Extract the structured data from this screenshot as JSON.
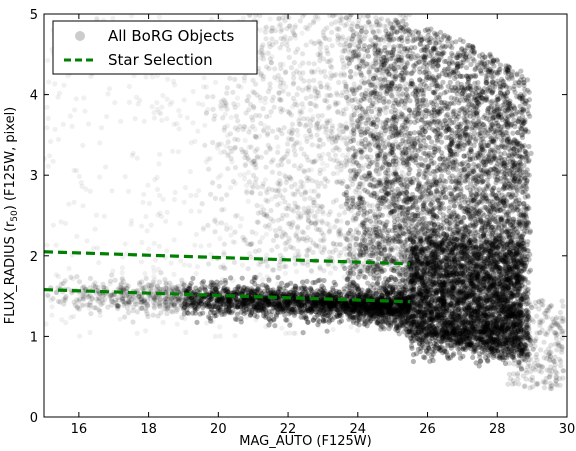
{
  "chart_data": {
    "type": "scatter",
    "title": "",
    "xlabel": "MAG_AUTO (F125W)",
    "ylabel": "FLUX_RADIUS (r",
    "ylabel_sub": "50",
    "ylabel_tail": ") (F125W, pixel)",
    "xlim": [
      15,
      30
    ],
    "ylim": [
      0,
      5
    ],
    "xticks": [
      "16",
      "18",
      "20",
      "22",
      "24",
      "26",
      "28",
      "30"
    ],
    "yticks": [
      "0",
      "1",
      "2",
      "3",
      "4",
      "5"
    ],
    "legend_position": "top-left",
    "series": [
      {
        "name": "All BoRG Objects",
        "kind": "scatter",
        "color": "#000000",
        "marker": "circle",
        "density_regions": [
          {
            "label": "faint dense cloud",
            "x_range": [
              23.5,
              29.0
            ],
            "y_range": [
              0.6,
              5.0
            ],
            "mean": [
              27.0,
              1.6
            ]
          },
          {
            "label": "stellar locus band",
            "x_range": [
              15.0,
              25.5
            ],
            "y_range": [
              1.3,
              1.8
            ],
            "mean": [
              21.5,
              1.5
            ]
          },
          {
            "label": "extended galaxy plume",
            "x_range": [
              19.0,
              26.0
            ],
            "y_range": [
              2.0,
              5.0
            ],
            "mean": [
              24.0,
              3.8
            ]
          }
        ]
      },
      {
        "name": "Star Selection",
        "kind": "line",
        "color": "#008000",
        "style": "dashed",
        "lines": [
          {
            "x": [
              15.0,
              25.5
            ],
            "y": [
              2.05,
              1.9
            ]
          },
          {
            "x": [
              15.0,
              25.5
            ],
            "y": [
              1.58,
              1.43
            ]
          }
        ]
      }
    ]
  }
}
